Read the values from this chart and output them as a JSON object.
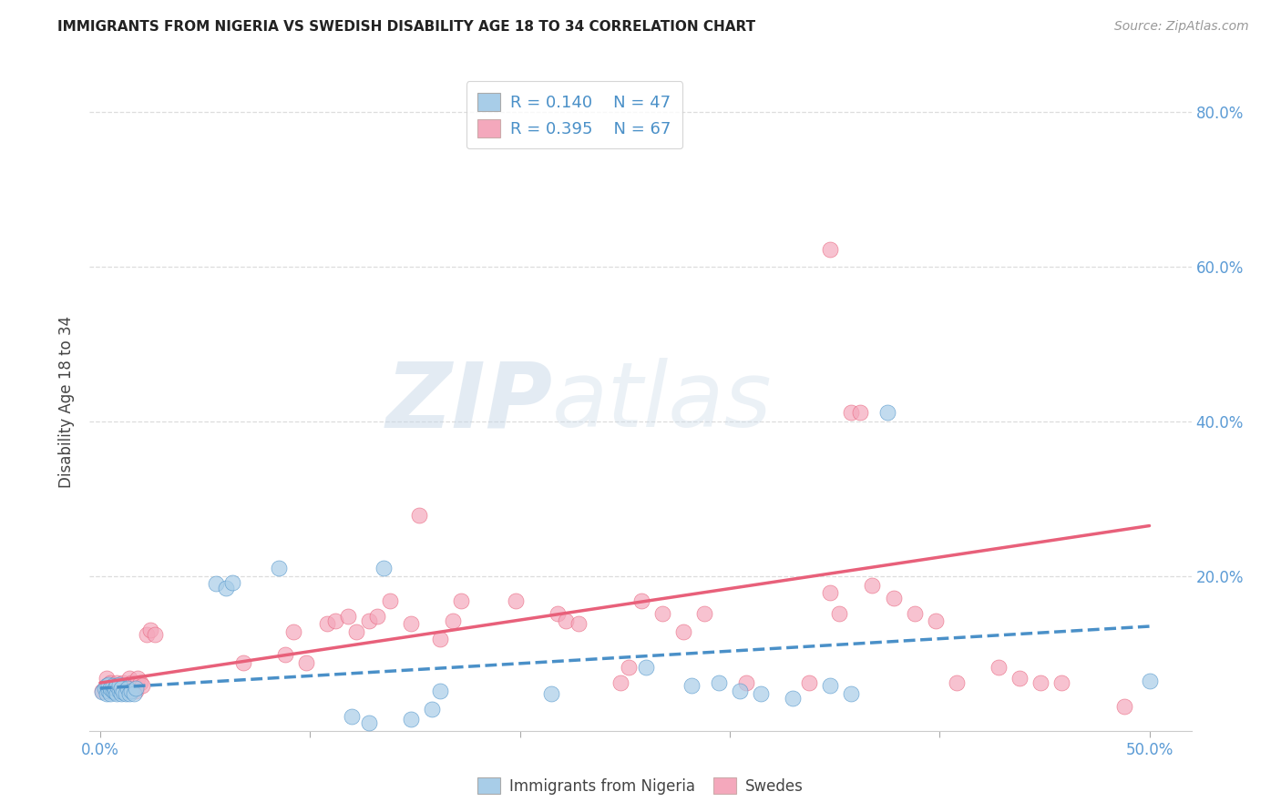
{
  "title": "IMMIGRANTS FROM NIGERIA VS SWEDISH DISABILITY AGE 18 TO 34 CORRELATION CHART",
  "source": "Source: ZipAtlas.com",
  "ylabel": "Disability Age 18 to 34",
  "ylim": [
    0,
    0.85
  ],
  "xlim": [
    -0.005,
    0.52
  ],
  "watermark": "ZIPatlas",
  "blue_color": "#A8CDE8",
  "pink_color": "#F4A8BC",
  "blue_line_color": "#4A90C8",
  "pink_line_color": "#E8607A",
  "background_color": "#FFFFFF",
  "grid_color": "#DDDDDD",
  "title_color": "#222222",
  "axis_label_color": "#5B9BD5",
  "blue_points": [
    [
      0.001,
      0.05
    ],
    [
      0.002,
      0.055
    ],
    [
      0.003,
      0.048
    ],
    [
      0.003,
      0.058
    ],
    [
      0.004,
      0.052
    ],
    [
      0.004,
      0.06
    ],
    [
      0.005,
      0.048
    ],
    [
      0.005,
      0.055
    ],
    [
      0.006,
      0.052
    ],
    [
      0.006,
      0.058
    ],
    [
      0.007,
      0.05
    ],
    [
      0.007,
      0.055
    ],
    [
      0.008,
      0.048
    ],
    [
      0.008,
      0.058
    ],
    [
      0.009,
      0.052
    ],
    [
      0.009,
      0.06
    ],
    [
      0.01,
      0.048
    ],
    [
      0.01,
      0.055
    ],
    [
      0.011,
      0.05
    ],
    [
      0.012,
      0.048
    ],
    [
      0.013,
      0.055
    ],
    [
      0.014,
      0.048
    ],
    [
      0.015,
      0.052
    ],
    [
      0.016,
      0.048
    ],
    [
      0.017,
      0.055
    ],
    [
      0.055,
      0.19
    ],
    [
      0.06,
      0.185
    ],
    [
      0.063,
      0.192
    ],
    [
      0.085,
      0.21
    ],
    [
      0.12,
      0.018
    ],
    [
      0.128,
      0.01
    ],
    [
      0.135,
      0.21
    ],
    [
      0.148,
      0.015
    ],
    [
      0.158,
      0.028
    ],
    [
      0.162,
      0.052
    ],
    [
      0.215,
      0.048
    ],
    [
      0.26,
      0.082
    ],
    [
      0.282,
      0.058
    ],
    [
      0.295,
      0.062
    ],
    [
      0.305,
      0.052
    ],
    [
      0.315,
      0.048
    ],
    [
      0.33,
      0.042
    ],
    [
      0.348,
      0.058
    ],
    [
      0.358,
      0.048
    ],
    [
      0.375,
      0.412
    ],
    [
      0.5,
      0.065
    ]
  ],
  "pink_points": [
    [
      0.001,
      0.052
    ],
    [
      0.003,
      0.068
    ],
    [
      0.004,
      0.052
    ],
    [
      0.005,
      0.062
    ],
    [
      0.006,
      0.058
    ],
    [
      0.007,
      0.052
    ],
    [
      0.008,
      0.062
    ],
    [
      0.009,
      0.058
    ],
    [
      0.01,
      0.052
    ],
    [
      0.011,
      0.062
    ],
    [
      0.012,
      0.058
    ],
    [
      0.013,
      0.052
    ],
    [
      0.014,
      0.068
    ],
    [
      0.015,
      0.062
    ],
    [
      0.016,
      0.058
    ],
    [
      0.017,
      0.052
    ],
    [
      0.018,
      0.068
    ],
    [
      0.019,
      0.062
    ],
    [
      0.02,
      0.058
    ],
    [
      0.022,
      0.125
    ],
    [
      0.024,
      0.13
    ],
    [
      0.026,
      0.125
    ],
    [
      0.068,
      0.088
    ],
    [
      0.088,
      0.098
    ],
    [
      0.092,
      0.128
    ],
    [
      0.098,
      0.088
    ],
    [
      0.108,
      0.138
    ],
    [
      0.112,
      0.142
    ],
    [
      0.118,
      0.148
    ],
    [
      0.122,
      0.128
    ],
    [
      0.128,
      0.142
    ],
    [
      0.132,
      0.148
    ],
    [
      0.138,
      0.168
    ],
    [
      0.148,
      0.138
    ],
    [
      0.152,
      0.278
    ],
    [
      0.162,
      0.118
    ],
    [
      0.168,
      0.142
    ],
    [
      0.172,
      0.168
    ],
    [
      0.198,
      0.168
    ],
    [
      0.218,
      0.152
    ],
    [
      0.222,
      0.142
    ],
    [
      0.228,
      0.138
    ],
    [
      0.248,
      0.062
    ],
    [
      0.252,
      0.082
    ],
    [
      0.258,
      0.168
    ],
    [
      0.268,
      0.152
    ],
    [
      0.278,
      0.128
    ],
    [
      0.288,
      0.152
    ],
    [
      0.308,
      0.062
    ],
    [
      0.338,
      0.062
    ],
    [
      0.348,
      0.178
    ],
    [
      0.352,
      0.152
    ],
    [
      0.358,
      0.412
    ],
    [
      0.362,
      0.412
    ],
    [
      0.368,
      0.188
    ],
    [
      0.378,
      0.172
    ],
    [
      0.388,
      0.152
    ],
    [
      0.398,
      0.142
    ],
    [
      0.408,
      0.062
    ],
    [
      0.428,
      0.082
    ],
    [
      0.438,
      0.068
    ],
    [
      0.448,
      0.062
    ],
    [
      0.458,
      0.062
    ],
    [
      0.488,
      0.032
    ],
    [
      0.348,
      0.622
    ]
  ],
  "xtick_positions": [
    0.0,
    0.1,
    0.2,
    0.3,
    0.4,
    0.5
  ],
  "ytick_positions": [
    0.2,
    0.4,
    0.6,
    0.8
  ],
  "ytick_labels": [
    "20.0%",
    "40.0%",
    "60.0%",
    "80.0%"
  ]
}
